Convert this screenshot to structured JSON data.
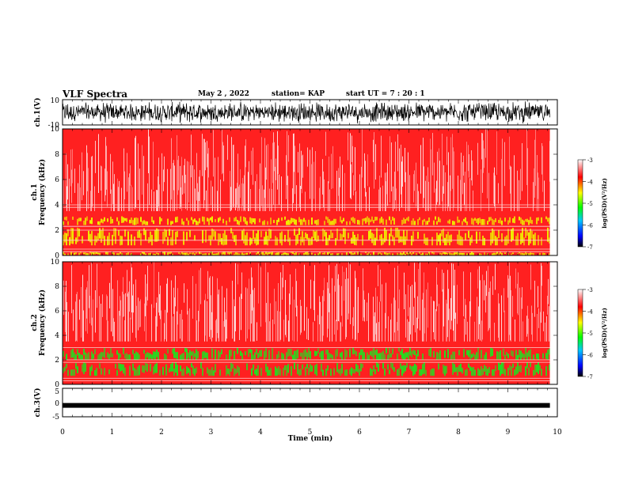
{
  "header": {
    "title": "VLF Spectra",
    "date": "May 2  , 2022",
    "station": "station= KAP",
    "start_ut": "start  UT  =   7 : 20 : 1"
  },
  "colors": {
    "spectrogram_base": "#ff2020",
    "noise_white": "#ffffff",
    "band_yellow": "#f0f000",
    "band_green": "#20e020",
    "waveform": "#000000",
    "colorbar": [
      "#000000",
      "#0000ff",
      "#00c8ff",
      "#00ff00",
      "#ffff00",
      "#ff0000",
      "#ffffff"
    ]
  },
  "chart_data": [
    {
      "type": "line",
      "ylabel": "ch.1(V)",
      "yticks": [
        "10",
        "-10"
      ],
      "ylim": [
        -10,
        10
      ],
      "description_signal": "broadband noise waveform",
      "x_range_min": [
        0,
        9.85
      ]
    },
    {
      "type": "heatmap",
      "ylabel": "ch.1\nFrequency  (kHz)",
      "ylabel_line1": "ch.1",
      "ylabel_line2": "Frequency  (kHz)",
      "yticks": [
        "10",
        "8",
        "6",
        "4",
        "2",
        "0"
      ],
      "ylim": [
        0,
        10
      ],
      "x_range_min": [
        0,
        9.85
      ],
      "colorbar": {
        "label": "log(PSD)(V²/Hz)",
        "ticks": [
          "-3",
          "-4",
          "-5",
          "-6",
          "-7"
        ],
        "range": [
          -7,
          -3
        ]
      },
      "bands_khz": [
        {
          "from": 0.0,
          "to": 0.3,
          "level": "yellow"
        },
        {
          "from": 0.8,
          "to": 2.2,
          "level": "yellow"
        },
        {
          "from": 2.4,
          "to": 3.1,
          "level": "yellow"
        }
      ],
      "lines_khz": [
        0.3,
        0.5,
        1.2,
        2.0,
        2.3,
        3.8,
        4.0
      ]
    },
    {
      "type": "heatmap",
      "ylabel_line1": "ch.2",
      "ylabel_line2": "Frequency  (kHz)",
      "yticks": [
        "10",
        "8",
        "6",
        "4",
        "2",
        "0"
      ],
      "ylim": [
        0,
        10
      ],
      "x_range_min": [
        0,
        9.85
      ],
      "colorbar": {
        "label": "log(PSD)(V²/Hz)",
        "ticks": [
          "-3",
          "-4",
          "-5",
          "-6",
          "-7"
        ],
        "range": [
          -7,
          -3
        ]
      },
      "bands_khz": [
        {
          "from": 0.7,
          "to": 1.8,
          "level": "green"
        },
        {
          "from": 2.0,
          "to": 3.0,
          "level": "green"
        }
      ],
      "lines_khz": [
        0.3,
        0.5,
        1.8,
        2.0,
        3.0
      ]
    },
    {
      "type": "line",
      "ylabel": "ch.3(V)",
      "yticks": [
        "5",
        "0",
        "-5"
      ],
      "ylim": [
        -5,
        5
      ],
      "level_v": -1.0,
      "x_range_min": [
        0,
        9.85
      ]
    }
  ],
  "xaxis": {
    "label": "Time  (min)",
    "ticks": [
      "0",
      "1",
      "2",
      "3",
      "4",
      "5",
      "6",
      "7",
      "8",
      "9",
      "10"
    ],
    "range": [
      0,
      10
    ]
  }
}
